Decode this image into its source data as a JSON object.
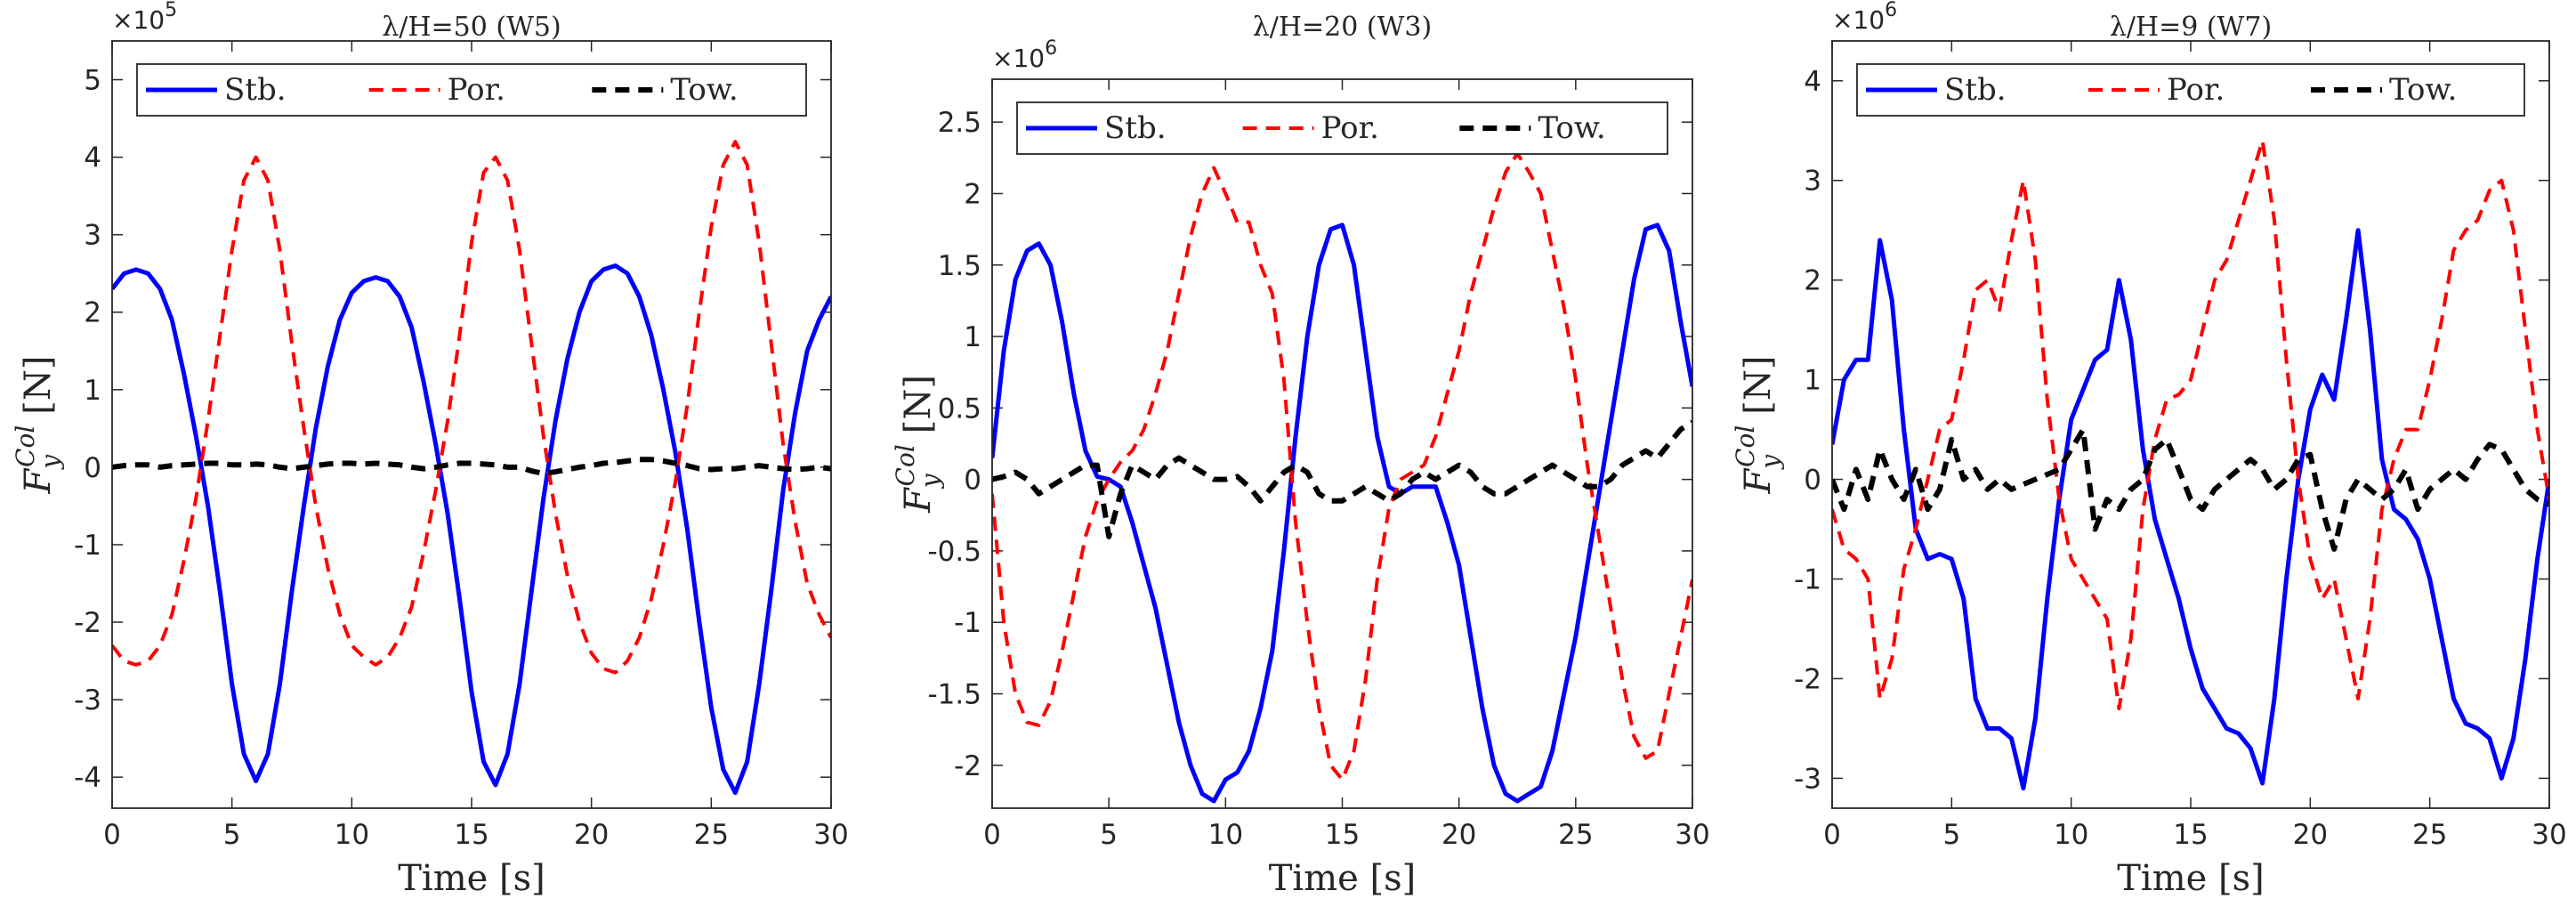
{
  "chart_data": [
    {
      "type": "line",
      "title": "λ/H=50 (W5)",
      "xlabel": "Time [s]",
      "ylabel": {
        "symbol": "F",
        "sub": "y",
        "sup": "Col",
        "unit": "[N]"
      },
      "exponent": {
        "base": "×10",
        "power": "5"
      },
      "x": [
        0,
        0.5,
        1,
        1.5,
        2,
        2.5,
        3,
        3.5,
        4,
        4.5,
        5,
        5.5,
        6,
        6.5,
        7,
        7.5,
        8,
        8.5,
        9,
        9.5,
        10,
        10.5,
        11,
        11.5,
        12,
        12.5,
        13,
        13.5,
        14,
        14.5,
        15,
        15.5,
        16,
        16.5,
        17,
        17.5,
        18,
        18.5,
        19,
        19.5,
        20,
        20.5,
        21,
        21.5,
        22,
        22.5,
        23,
        23.5,
        24,
        24.5,
        25,
        25.5,
        26,
        26.5,
        27,
        27.5,
        28,
        28.5,
        29,
        29.5,
        30
      ],
      "series": [
        {
          "name": "Stb.",
          "color": "#0000ff",
          "style": "solid",
          "values": [
            2.3,
            2.5,
            2.55,
            2.5,
            2.3,
            1.9,
            1.2,
            0.4,
            -0.5,
            -1.6,
            -2.8,
            -3.7,
            -4.05,
            -3.7,
            -2.8,
            -1.6,
            -0.5,
            0.5,
            1.3,
            1.9,
            2.25,
            2.4,
            2.45,
            2.4,
            2.2,
            1.8,
            1.1,
            0.3,
            -0.6,
            -1.7,
            -2.9,
            -3.8,
            -4.1,
            -3.7,
            -2.8,
            -1.6,
            -0.4,
            0.6,
            1.4,
            2.0,
            2.4,
            2.55,
            2.6,
            2.5,
            2.2,
            1.7,
            1.0,
            0.2,
            -0.8,
            -2.0,
            -3.1,
            -3.9,
            -4.2,
            -3.8,
            -2.8,
            -1.6,
            -0.3,
            0.7,
            1.5,
            1.9,
            2.2
          ]
        },
        {
          "name": "Por.",
          "color": "#ff0000",
          "style": "dashed",
          "values": [
            -2.3,
            -2.5,
            -2.55,
            -2.5,
            -2.3,
            -1.9,
            -1.2,
            -0.4,
            0.6,
            1.7,
            2.8,
            3.7,
            4.0,
            3.7,
            2.8,
            1.6,
            0.5,
            -0.5,
            -1.3,
            -1.9,
            -2.3,
            -2.45,
            -2.55,
            -2.45,
            -2.2,
            -1.8,
            -1.1,
            -0.3,
            0.6,
            1.7,
            2.9,
            3.8,
            4.0,
            3.7,
            2.8,
            1.6,
            0.4,
            -0.6,
            -1.4,
            -2.0,
            -2.4,
            -2.6,
            -2.65,
            -2.5,
            -2.2,
            -1.7,
            -1.0,
            -0.2,
            0.8,
            2.0,
            3.1,
            3.9,
            4.2,
            3.9,
            2.9,
            1.6,
            0.3,
            -0.7,
            -1.5,
            -1.9,
            -2.2
          ]
        },
        {
          "name": "Tow.",
          "color": "#000000",
          "style": "dashed-bold",
          "values": [
            0.0,
            0.02,
            0.03,
            0.03,
            0.0,
            0.02,
            0.03,
            0.04,
            0.05,
            0.05,
            0.03,
            0.03,
            0.04,
            0.03,
            0.0,
            -0.02,
            0.0,
            0.02,
            0.04,
            0.05,
            0.05,
            0.04,
            0.05,
            0.04,
            0.03,
            0.0,
            -0.02,
            0.0,
            0.03,
            0.05,
            0.05,
            0.04,
            0.03,
            0.0,
            0.0,
            -0.05,
            -0.08,
            -0.06,
            -0.03,
            0.0,
            0.02,
            0.05,
            0.06,
            0.08,
            0.1,
            0.1,
            0.08,
            0.05,
            0.02,
            -0.02,
            -0.03,
            -0.02,
            -0.02,
            0.0,
            0.02,
            0.0,
            -0.02,
            -0.03,
            -0.02,
            0.0,
            -0.02
          ]
        }
      ],
      "xlim": [
        0,
        30
      ],
      "xticks": [
        0,
        5,
        10,
        15,
        20,
        25,
        30
      ],
      "ylim": [
        -4.4,
        5.5
      ],
      "yticks": [
        -4,
        -3,
        -2,
        -1,
        0,
        1,
        2,
        3,
        4,
        5
      ],
      "legend": "top-left"
    },
    {
      "type": "line",
      "title": "λ/H=20 (W3)",
      "xlabel": "Time [s]",
      "ylabel": {
        "symbol": "F",
        "sub": "y",
        "sup": "Col",
        "unit": "[N]"
      },
      "exponent": {
        "base": "×10",
        "power": "6"
      },
      "x": [
        0,
        0.5,
        1,
        1.5,
        2,
        2.5,
        3,
        3.5,
        4,
        4.5,
        5,
        5.5,
        6,
        6.5,
        7,
        7.5,
        8,
        8.5,
        9,
        9.5,
        10,
        10.5,
        11,
        11.5,
        12,
        12.5,
        13,
        13.5,
        14,
        14.5,
        15,
        15.5,
        16,
        16.5,
        17,
        17.5,
        18,
        18.5,
        19,
        19.5,
        20,
        20.5,
        21,
        21.5,
        22,
        22.5,
        23,
        23.5,
        24,
        24.5,
        25,
        25.5,
        26,
        26.5,
        27,
        27.5,
        28,
        28.5,
        29,
        29.5,
        30
      ],
      "series": [
        {
          "name": "Stb.",
          "color": "#0000ff",
          "style": "solid",
          "values": [
            0.15,
            0.9,
            1.4,
            1.6,
            1.65,
            1.5,
            1.1,
            0.6,
            0.2,
            0.02,
            0.0,
            -0.05,
            -0.3,
            -0.6,
            -0.9,
            -1.3,
            -1.7,
            -2.0,
            -2.2,
            -2.25,
            -2.1,
            -2.05,
            -1.9,
            -1.6,
            -1.2,
            -0.5,
            0.3,
            1.0,
            1.5,
            1.75,
            1.78,
            1.5,
            0.9,
            0.3,
            -0.05,
            -0.1,
            -0.05,
            -0.05,
            -0.05,
            -0.3,
            -0.6,
            -1.1,
            -1.6,
            -2.0,
            -2.2,
            -2.25,
            -2.2,
            -2.15,
            -1.9,
            -1.5,
            -1.1,
            -0.6,
            -0.1,
            0.4,
            0.9,
            1.4,
            1.75,
            1.78,
            1.6,
            1.1,
            0.65
          ]
        },
        {
          "name": "Por.",
          "color": "#ff0000",
          "style": "dashed",
          "values": [
            -0.1,
            -1.0,
            -1.5,
            -1.7,
            -1.72,
            -1.55,
            -1.2,
            -0.8,
            -0.4,
            -0.15,
            0.0,
            0.12,
            0.2,
            0.35,
            0.6,
            0.9,
            1.3,
            1.7,
            2.0,
            2.18,
            2.0,
            1.8,
            1.8,
            1.5,
            1.3,
            0.7,
            -0.3,
            -1.0,
            -1.6,
            -2.0,
            -2.1,
            -1.9,
            -1.4,
            -0.7,
            -0.2,
            0.0,
            0.05,
            0.1,
            0.3,
            0.6,
            0.9,
            1.3,
            1.6,
            1.9,
            2.15,
            2.28,
            2.15,
            2.0,
            1.6,
            1.2,
            0.7,
            0.1,
            -0.4,
            -0.9,
            -1.4,
            -1.8,
            -1.95,
            -1.9,
            -1.5,
            -1.1,
            -0.7
          ]
        },
        {
          "name": "Tow.",
          "color": "#000000",
          "style": "dashed-bold",
          "values": [
            0.0,
            0.02,
            0.05,
            0.0,
            -0.1,
            -0.05,
            0.0,
            0.05,
            0.1,
            0.1,
            -0.4,
            -0.1,
            0.1,
            0.05,
            0.0,
            0.1,
            0.15,
            0.1,
            0.05,
            0.0,
            0.0,
            0.02,
            -0.05,
            -0.15,
            -0.05,
            0.05,
            0.1,
            0.05,
            -0.1,
            -0.15,
            -0.15,
            -0.1,
            -0.05,
            -0.1,
            -0.15,
            -0.1,
            0.0,
            0.05,
            0.0,
            0.05,
            0.1,
            0.05,
            -0.05,
            -0.1,
            -0.1,
            -0.05,
            0.0,
            0.05,
            0.1,
            0.05,
            0.0,
            -0.05,
            -0.05,
            0.0,
            0.1,
            0.15,
            0.2,
            0.15,
            0.25,
            0.35,
            0.4
          ]
        }
      ],
      "xlim": [
        0,
        30
      ],
      "xticks": [
        0,
        5,
        10,
        15,
        20,
        25,
        30
      ],
      "ylim": [
        -2.3,
        2.8
      ],
      "yticks": [
        -2,
        -1.5,
        -1,
        -0.5,
        0,
        0.5,
        1,
        1.5,
        2,
        2.5
      ],
      "legend": "top-left"
    },
    {
      "type": "line",
      "title": "λ/H=9 (W7)",
      "xlabel": "Time [s]",
      "ylabel": {
        "symbol": "F",
        "sub": "y",
        "sup": "Col",
        "unit": "[N]"
      },
      "exponent": {
        "base": "×10",
        "power": "6"
      },
      "x": [
        0,
        0.5,
        1,
        1.5,
        2,
        2.5,
        3,
        3.5,
        4,
        4.5,
        5,
        5.5,
        6,
        6.5,
        7,
        7.5,
        8,
        8.5,
        9,
        9.5,
        10,
        10.5,
        11,
        11.5,
        12,
        12.5,
        13,
        13.5,
        14,
        14.5,
        15,
        15.5,
        16,
        16.5,
        17,
        17.5,
        18,
        18.5,
        19,
        19.5,
        20,
        20.5,
        21,
        21.5,
        22,
        22.5,
        23,
        23.5,
        24,
        24.5,
        25,
        25.5,
        26,
        26.5,
        27,
        27.5,
        28,
        28.5,
        29,
        29.5,
        30
      ],
      "series": [
        {
          "name": "Stb.",
          "color": "#0000ff",
          "style": "solid",
          "values": [
            0.35,
            1.0,
            1.2,
            1.2,
            2.4,
            1.8,
            0.5,
            -0.5,
            -0.8,
            -0.75,
            -0.8,
            -1.2,
            -2.2,
            -2.5,
            -2.5,
            -2.6,
            -3.1,
            -2.4,
            -1.2,
            -0.2,
            0.6,
            0.9,
            1.2,
            1.3,
            2.0,
            1.4,
            0.3,
            -0.4,
            -0.8,
            -1.2,
            -1.7,
            -2.1,
            -2.3,
            -2.5,
            -2.55,
            -2.7,
            -3.05,
            -2.2,
            -1.0,
            0.0,
            0.7,
            1.05,
            0.8,
            1.6,
            2.5,
            1.5,
            0.2,
            -0.3,
            -0.4,
            -0.6,
            -1.0,
            -1.6,
            -2.2,
            -2.45,
            -2.5,
            -2.6,
            -3.0,
            -2.6,
            -1.8,
            -0.8,
            0.0
          ]
        },
        {
          "name": "Por.",
          "color": "#ff0000",
          "style": "dashed",
          "values": [
            -0.3,
            -0.7,
            -0.8,
            -1.0,
            -2.2,
            -1.8,
            -0.9,
            -0.5,
            0.0,
            0.5,
            0.6,
            1.2,
            1.9,
            2.0,
            1.7,
            2.4,
            3.0,
            2.2,
            0.8,
            -0.2,
            -0.8,
            -1.0,
            -1.2,
            -1.4,
            -2.3,
            -1.6,
            -0.3,
            0.4,
            0.8,
            0.85,
            1.0,
            1.5,
            2.0,
            2.2,
            2.6,
            3.0,
            3.4,
            2.6,
            1.2,
            0.0,
            -0.8,
            -1.2,
            -1.0,
            -1.6,
            -2.2,
            -1.4,
            -0.3,
            0.2,
            0.5,
            0.5,
            1.0,
            1.6,
            2.3,
            2.5,
            2.6,
            2.9,
            3.0,
            2.5,
            1.5,
            0.5,
            -0.2
          ]
        },
        {
          "name": "Tow.",
          "color": "#000000",
          "style": "dashed-bold",
          "values": [
            0.0,
            -0.3,
            0.1,
            -0.2,
            0.3,
            0.0,
            -0.2,
            0.1,
            -0.3,
            -0.1,
            0.4,
            0.0,
            0.1,
            -0.1,
            0.0,
            -0.1,
            -0.05,
            0.0,
            0.05,
            0.1,
            0.3,
            0.5,
            -0.5,
            -0.2,
            -0.3,
            -0.1,
            0.0,
            0.3,
            0.4,
            0.1,
            -0.2,
            -0.3,
            -0.1,
            0.0,
            0.1,
            0.2,
            0.1,
            -0.1,
            0.0,
            0.2,
            0.25,
            -0.3,
            -0.7,
            -0.2,
            0.0,
            -0.1,
            -0.2,
            -0.1,
            0.1,
            -0.3,
            -0.1,
            0.0,
            0.1,
            0.0,
            0.2,
            0.35,
            0.3,
            0.1,
            -0.1,
            -0.2,
            -0.25
          ]
        }
      ],
      "xlim": [
        0,
        30
      ],
      "xticks": [
        0,
        5,
        10,
        15,
        20,
        25,
        30
      ],
      "ylim": [
        -3.3,
        4.4
      ],
      "yticks": [
        -3,
        -2,
        -1,
        0,
        1,
        2,
        3,
        4
      ],
      "legend": "top-left"
    }
  ]
}
